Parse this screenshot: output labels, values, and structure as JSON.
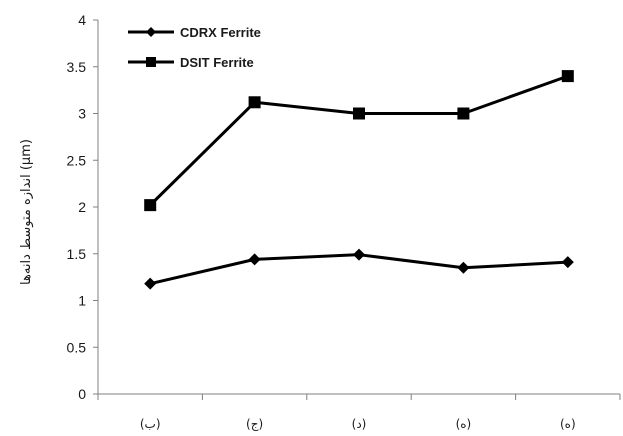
{
  "chart_data": {
    "type": "line",
    "title": "",
    "xlabel": "",
    "ylabel": "اندازه متوسط دانه‌ها (μm)",
    "categories": [
      "(ب)",
      "(ج)",
      "(د)",
      "(ه)",
      "(ه)"
    ],
    "ylim": [
      0,
      4
    ],
    "yticks": [
      "0",
      "0.5",
      "1",
      "1.5",
      "2",
      "2.5",
      "3",
      "3.5",
      "4"
    ],
    "grid": false,
    "legend_position": "top-left",
    "series": [
      {
        "name": "CDRX Ferrite",
        "marker": "diamond",
        "color": "#000000",
        "values": [
          1.18,
          1.44,
          1.49,
          1.35,
          1.41
        ]
      },
      {
        "name": "DSIT Ferrite",
        "marker": "square",
        "color": "#000000",
        "values": [
          2.02,
          3.12,
          3.0,
          3.0,
          3.4
        ]
      }
    ]
  }
}
